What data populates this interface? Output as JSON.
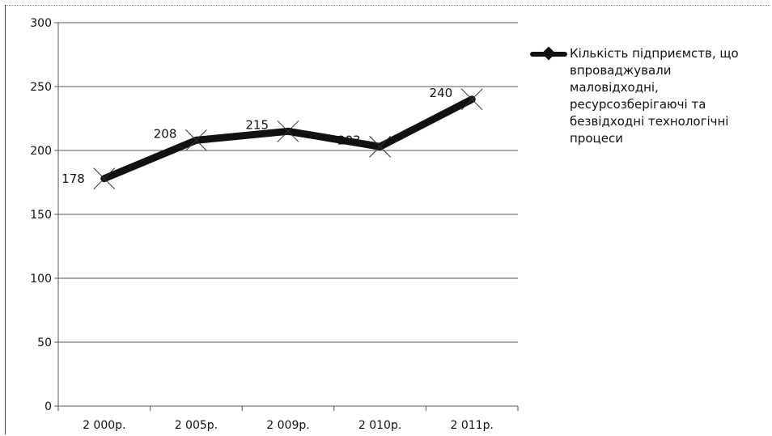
{
  "chart_data": {
    "type": "line",
    "categories": [
      "2 000р.",
      "2 005р.",
      "2 009р.",
      "2 010р.",
      "2 011р."
    ],
    "series": [
      {
        "name": "Кількість підприємств, що впроваджували маловідходні, ресурсозберігаючі та безвідходні технологічні процеси",
        "values": [
          178,
          208,
          215,
          203,
          240
        ],
        "color": "#111111"
      }
    ],
    "data_labels": [
      "178",
      "208",
      "215",
      "203",
      "240"
    ],
    "yticks": [
      "0",
      "50",
      "100",
      "150",
      "200",
      "250",
      "300"
    ],
    "ylim": [
      0,
      300
    ],
    "grid": true,
    "legend_position": "right",
    "title": "",
    "xlabel": "",
    "ylabel": ""
  }
}
